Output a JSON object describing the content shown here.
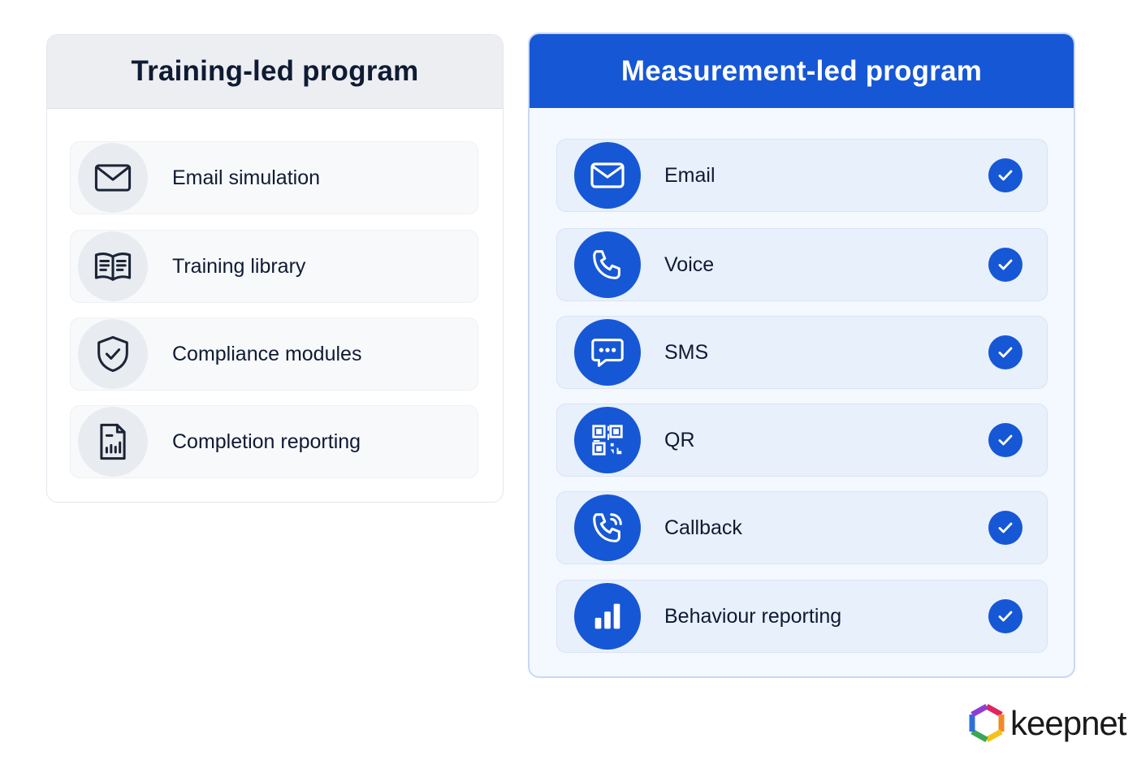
{
  "left_panel": {
    "title": "Training-led program",
    "items": [
      {
        "label": "Email simulation",
        "icon": "envelope-icon"
      },
      {
        "label": "Training library",
        "icon": "book-icon"
      },
      {
        "label": "Compliance modules",
        "icon": "shield-check-icon"
      },
      {
        "label": "Completion reporting",
        "icon": "report-document-icon"
      }
    ]
  },
  "right_panel": {
    "title": "Measurement-led program",
    "items": [
      {
        "label": "Email",
        "icon": "envelope-icon",
        "checked": true
      },
      {
        "label": "Voice",
        "icon": "phone-icon",
        "checked": true
      },
      {
        "label": "SMS",
        "icon": "chat-bubble-icon",
        "checked": true
      },
      {
        "label": "QR",
        "icon": "qr-code-icon",
        "checked": true
      },
      {
        "label": "Callback",
        "icon": "phone-ringing-icon",
        "checked": true
      },
      {
        "label": "Behaviour reporting",
        "icon": "bar-chart-icon",
        "checked": true
      }
    ]
  },
  "logo": {
    "text": "keepnet"
  },
  "colors": {
    "accent": "#1657d6",
    "left_header_bg": "#eceef2",
    "right_panel_bg": "#f4f8ff",
    "text": "#0f1b33"
  }
}
